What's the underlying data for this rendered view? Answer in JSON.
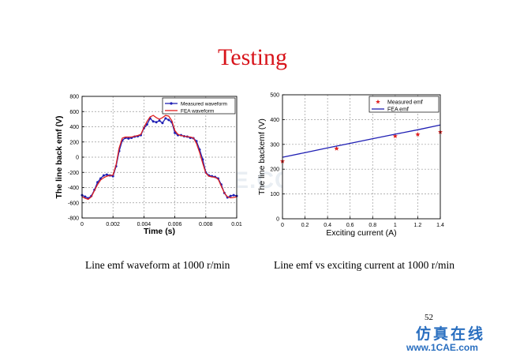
{
  "slide": {
    "title": "Testing",
    "caption_left": "Line emf waveform at 1000 r/min",
    "caption_right": "Line emf vs exciting current at 1000 r/min",
    "page_number": "52",
    "watermark_cn": "仿真在线",
    "watermark_url": "www.1CAE.com",
    "watermark_center": "1CAE.COM",
    "title_color": "#d8141b"
  },
  "chart_data": [
    {
      "type": "line",
      "xlabel": "Time (s)",
      "ylabel": "The line back emf (V)",
      "xlim": [
        0,
        0.01
      ],
      "ylim": [
        -800,
        800
      ],
      "x_ticks": [
        "0",
        "0.002",
        "0.004",
        "0.006",
        "0.008",
        "0.01"
      ],
      "y_ticks": [
        "800",
        "600",
        "400",
        "200",
        "0",
        "-200",
        "-400",
        "-600",
        "-800"
      ],
      "grid": true,
      "legend": "top-right",
      "series": [
        {
          "name": "Measured waveform",
          "color": "#1f1fb4",
          "marker": "dot",
          "x": [
            0,
            0.0002,
            0.0004,
            0.0006,
            0.0008,
            0.001,
            0.0012,
            0.0014,
            0.0016,
            0.0018,
            0.002,
            0.0022,
            0.0024,
            0.0026,
            0.0028,
            0.003,
            0.0032,
            0.0034,
            0.0036,
            0.0038,
            0.004,
            0.0042,
            0.0044,
            0.0046,
            0.0048,
            0.005,
            0.0052,
            0.0054,
            0.0056,
            0.0058,
            0.006,
            0.0062,
            0.0064,
            0.0066,
            0.0068,
            0.007,
            0.0072,
            0.0074,
            0.0076,
            0.0078,
            0.008,
            0.0082,
            0.0084,
            0.0086,
            0.0088,
            0.009,
            0.0092,
            0.0094,
            0.0096,
            0.0098,
            0.01
          ],
          "y": [
            -500,
            -520,
            -540,
            -510,
            -430,
            -330,
            -280,
            -240,
            -230,
            -240,
            -250,
            -120,
            80,
            220,
            255,
            245,
            255,
            270,
            275,
            290,
            380,
            430,
            510,
            470,
            460,
            480,
            450,
            510,
            490,
            460,
            320,
            290,
            290,
            275,
            270,
            255,
            250,
            210,
            100,
            -30,
            -200,
            -240,
            -250,
            -260,
            -280,
            -360,
            -470,
            -530,
            -510,
            -500,
            -510
          ]
        },
        {
          "name": "FEA waveform",
          "color": "#e02020",
          "x": [
            0,
            0.0002,
            0.0004,
            0.0006,
            0.0008,
            0.001,
            0.0012,
            0.0014,
            0.0016,
            0.0018,
            0.002,
            0.0022,
            0.0024,
            0.0026,
            0.0028,
            0.003,
            0.0032,
            0.0034,
            0.0036,
            0.0038,
            0.004,
            0.0042,
            0.0044,
            0.0046,
            0.0048,
            0.005,
            0.0052,
            0.0054,
            0.0056,
            0.0058,
            0.006,
            0.0062,
            0.0064,
            0.0066,
            0.0068,
            0.007,
            0.0072,
            0.0074,
            0.0076,
            0.0078,
            0.008,
            0.0082,
            0.0084,
            0.0086,
            0.0088,
            0.009,
            0.0092,
            0.0094,
            0.0096,
            0.0098,
            0.01
          ],
          "y": [
            -520,
            -540,
            -555,
            -520,
            -440,
            -360,
            -300,
            -270,
            -250,
            -240,
            -235,
            -100,
            120,
            250,
            265,
            265,
            265,
            275,
            285,
            300,
            390,
            470,
            530,
            550,
            520,
            500,
            520,
            550,
            540,
            480,
            350,
            300,
            285,
            275,
            270,
            265,
            255,
            180,
            60,
            -80,
            -210,
            -250,
            -260,
            -265,
            -290,
            -380,
            -470,
            -520,
            -535,
            -530,
            -520
          ]
        }
      ]
    },
    {
      "type": "scatter",
      "xlabel": "Exciting current (A)",
      "ylabel": "The line backemf  (V)",
      "xlim": [
        0,
        1.4
      ],
      "ylim": [
        0,
        500
      ],
      "x_ticks": [
        "0",
        "0.2",
        "0.4",
        "0.6",
        "0.8",
        "1",
        "1.2",
        "1.4"
      ],
      "y_ticks": [
        "500",
        "400",
        "300",
        "200",
        "100",
        "0"
      ],
      "grid": true,
      "legend": "top-right",
      "series": [
        {
          "name": "Measured emf",
          "color": "#e02020",
          "marker": "star",
          "x": [
            0,
            0.48,
            1.0,
            1.2,
            1.4
          ],
          "y": [
            232,
            283,
            333,
            340,
            350
          ]
        },
        {
          "name": "FEA emf",
          "color": "#1f1fb4",
          "x": [
            0,
            0.2,
            0.4,
            0.6,
            0.8,
            1.0,
            1.2,
            1.4
          ],
          "y": [
            248,
            267,
            286,
            304,
            323,
            341,
            359,
            378
          ]
        }
      ]
    }
  ]
}
